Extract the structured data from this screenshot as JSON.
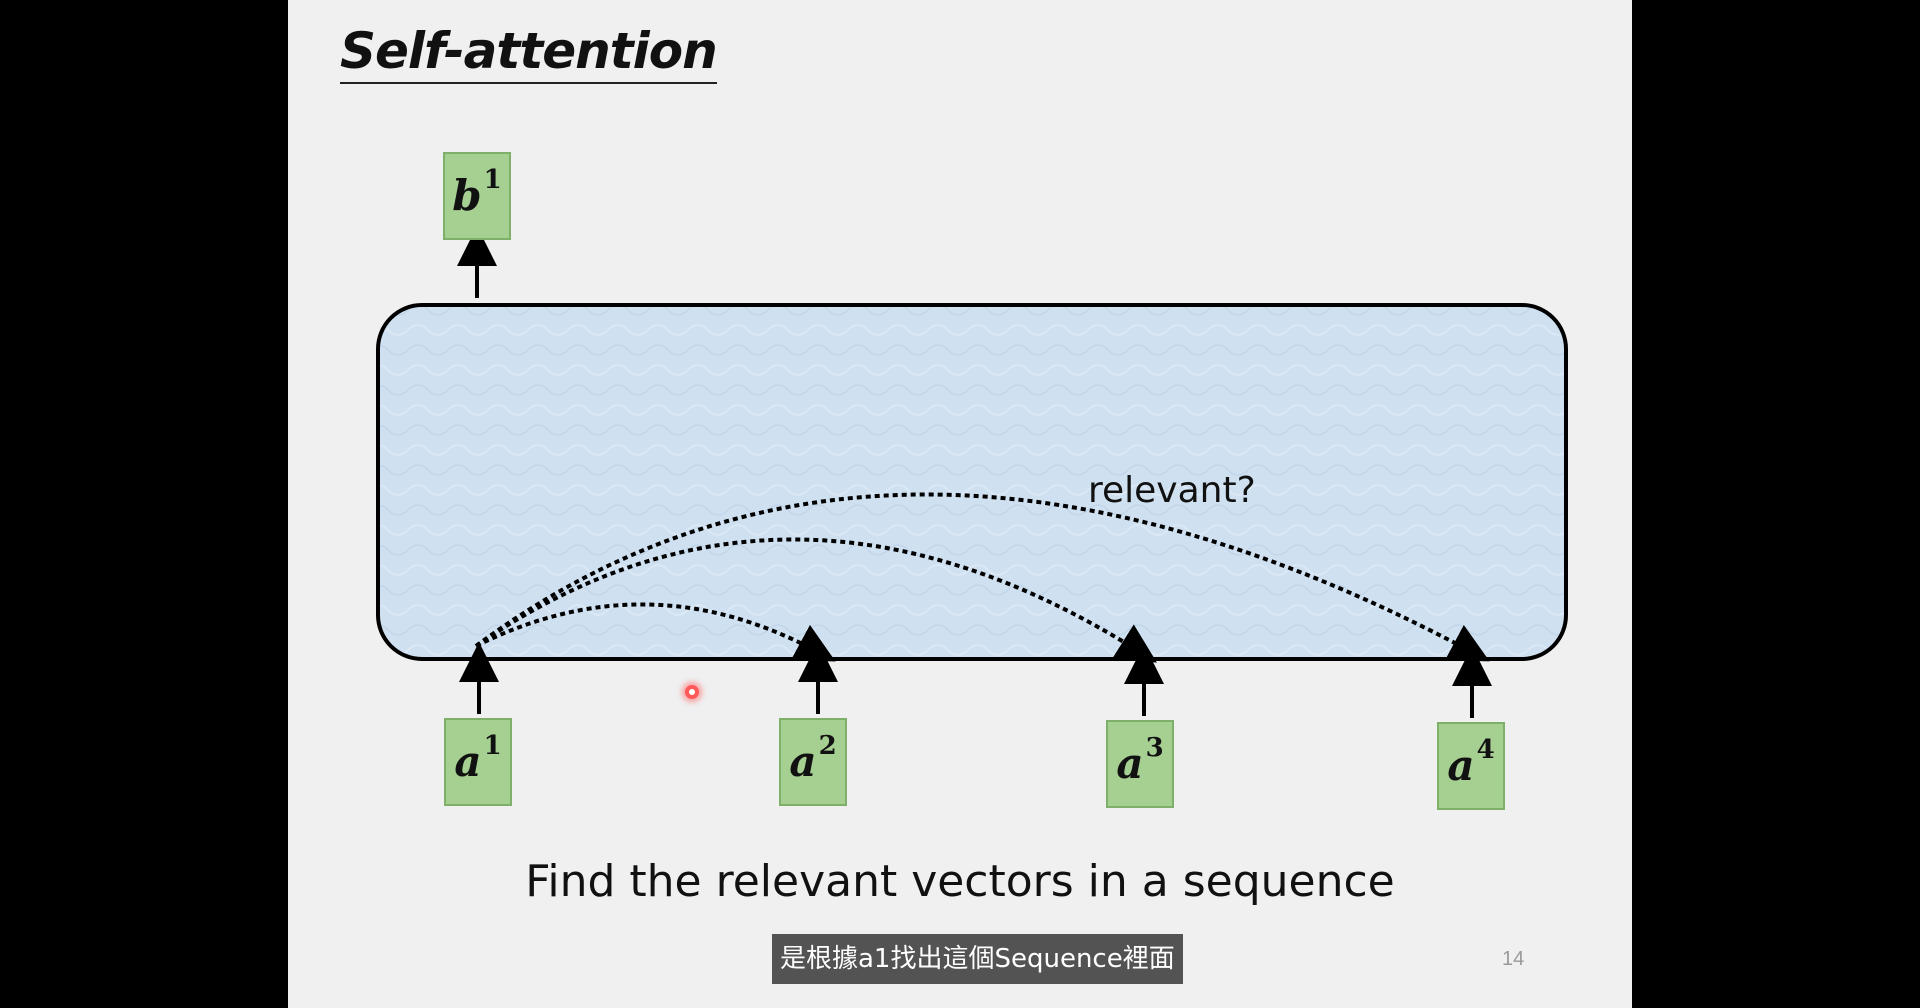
{
  "slide": {
    "title": "Self-attention",
    "relevant_label": "relevant?",
    "caption": "Find the relevant vectors in a sequence",
    "page_number": "14"
  },
  "output_vectors": [
    {
      "base": "b",
      "sup": "1"
    }
  ],
  "input_vectors": [
    {
      "base": "a",
      "sup": "1"
    },
    {
      "base": "a",
      "sup": "2"
    },
    {
      "base": "a",
      "sup": "3"
    },
    {
      "base": "a",
      "sup": "4"
    }
  ],
  "subtitle": "是根據a1找出這個Sequence裡面",
  "colors": {
    "vector_box": "#a6cf92",
    "attention_block": "#cfe0f0",
    "slide_bg": "#f0f0f0"
  }
}
